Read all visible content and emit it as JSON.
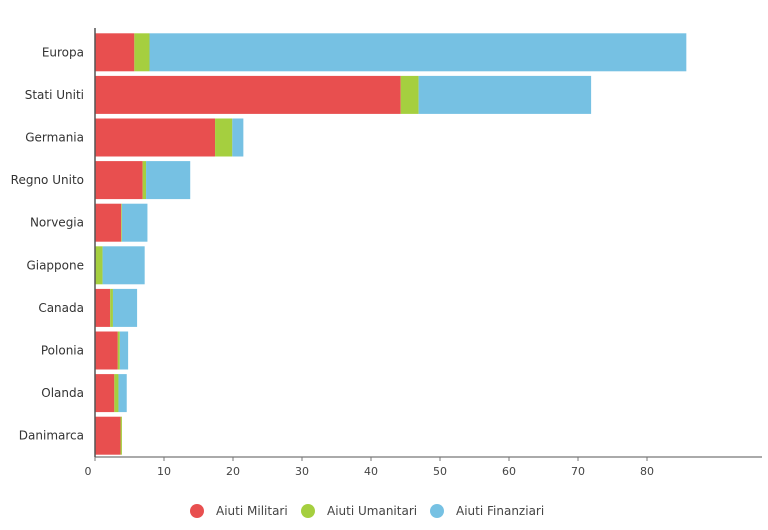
{
  "chart_data": {
    "type": "bar",
    "orientation": "horizontal",
    "stacked": true,
    "categories": [
      "Europa",
      "Stati Uniti",
      "Germania",
      "Regno Unito",
      "Norvegia",
      "Giappone",
      "Canada",
      "Polonia",
      "Olanda",
      "Danimarca"
    ],
    "series": [
      {
        "name": "Aiuti Militari",
        "color": "#e84f4f",
        "values": [
          5.7,
          44.3,
          17.4,
          6.9,
          3.8,
          0.0,
          2.2,
          3.3,
          2.8,
          3.7
        ]
      },
      {
        "name": "Aiuti Umanitari",
        "color": "#a5cf3f",
        "values": [
          2.2,
          2.6,
          2.5,
          0.5,
          0.1,
          1.1,
          0.4,
          0.3,
          0.6,
          0.2
        ]
      },
      {
        "name": "Aiuti Finanziari",
        "color": "#76c1e3",
        "values": [
          77.8,
          25.0,
          1.6,
          6.4,
          3.7,
          6.1,
          3.5,
          1.2,
          1.2,
          0.0
        ]
      }
    ],
    "xlim": [
      0,
      87
    ],
    "xticks": [
      0,
      10,
      20,
      30,
      40,
      50,
      60,
      70,
      80
    ],
    "grid": false,
    "legend_position": "bottom"
  }
}
